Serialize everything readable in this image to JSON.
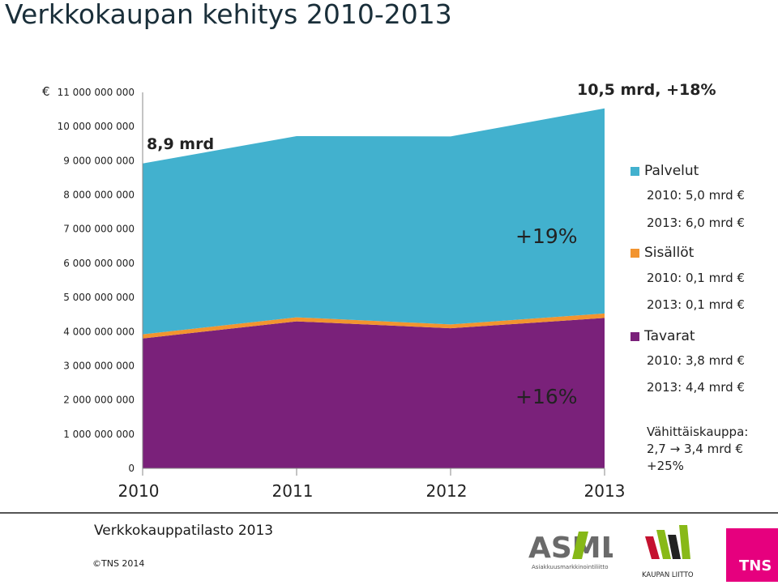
{
  "title": "Verkkokaupan kehitys 2010-2013",
  "y_unit": "€",
  "annotations": {
    "start_total": "8,9 mrd",
    "end_total": "10,5 mrd, +18%",
    "services_growth": "+19%",
    "goods_growth": "+16%"
  },
  "legend": {
    "services": {
      "label": "Palvelut",
      "line1": "2010: 5,0 mrd €",
      "line2": "2013: 6,0 mrd €",
      "color": "#42B1CE"
    },
    "content": {
      "label": "Sisällöt",
      "line1": "2010: 0,1 mrd €",
      "line2": "2013: 0,1 mrd €",
      "color": "#F2942F"
    },
    "goods": {
      "label": "Tavarat",
      "line1": "2010: 3,8 mrd €",
      "line2": "2013: 4,4 mrd €",
      "color": "#7A217A"
    },
    "retail": {
      "line1": "Vähittäiskauppa:",
      "line2": "2,7 → 3,4 mrd €",
      "line3": "+25%"
    }
  },
  "footer": {
    "source": "Verkkokauppatilasto 2013",
    "copyright": "©TNS 2014"
  },
  "logos": {
    "asml_text": "ASML",
    "asml_sub": "Asiakkuusmarkkinointiliitto",
    "kaupan_liitto": "KAUPAN LIITTO",
    "tns": "TNS"
  },
  "chart_data": {
    "type": "area",
    "stacked": true,
    "title": "Verkkokaupan kehitys 2010-2013",
    "xlabel": "",
    "ylabel": "€",
    "categories": [
      "2010",
      "2011",
      "2012",
      "2013"
    ],
    "ylim": [
      0,
      11000000000
    ],
    "yticks": [
      0,
      1000000000,
      2000000000,
      3000000000,
      4000000000,
      5000000000,
      6000000000,
      7000000000,
      8000000000,
      9000000000,
      10000000000,
      11000000000
    ],
    "ytick_labels": [
      "0",
      "1 000 000 000",
      "2 000 000 000",
      "3 000 000 000",
      "4 000 000 000",
      "5 000 000 000",
      "6 000 000 000",
      "7 000 000 000",
      "8 000 000 000",
      "9 000 000 000",
      "10 000 000 000",
      "11 000 000 000"
    ],
    "series": [
      {
        "name": "Tavarat",
        "color": "#7A217A",
        "values": [
          3800000000,
          4300000000,
          4100000000,
          4400000000
        ]
      },
      {
        "name": "Sisällöt",
        "color": "#F2942F",
        "values": [
          120000000,
          120000000,
          110000000,
          130000000
        ]
      },
      {
        "name": "Palvelut",
        "color": "#42B1CE",
        "values": [
          5000000000,
          5300000000,
          5500000000,
          6000000000
        ]
      }
    ],
    "grid": false,
    "legend_position": "right"
  }
}
